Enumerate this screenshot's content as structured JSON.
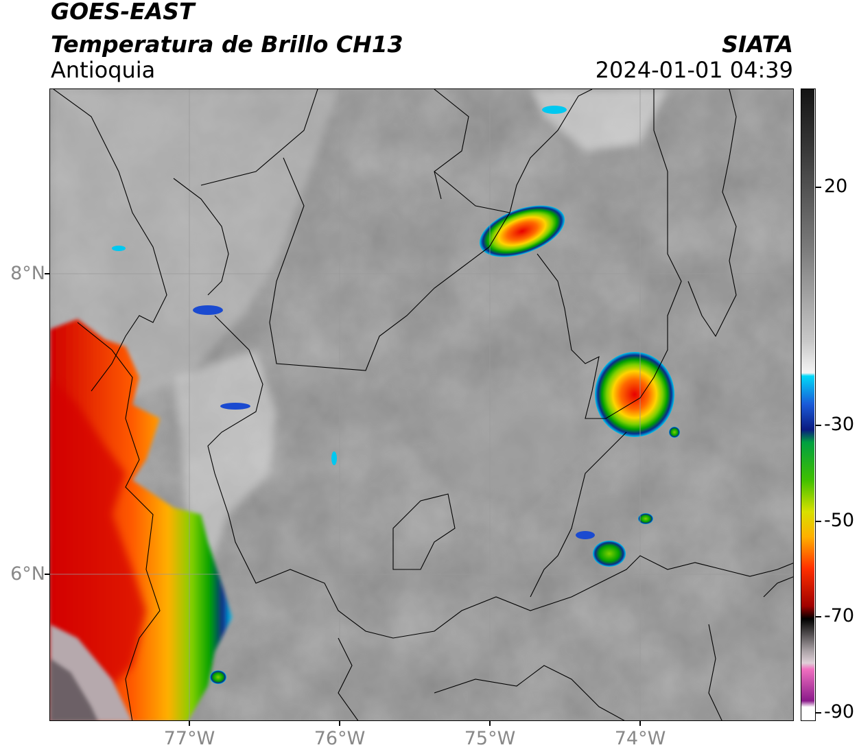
{
  "header": {
    "satellite": "GOES-EAST",
    "product": "Temperatura de Brillo CH13",
    "organization": "SIATA",
    "region": "Antioquia",
    "timestamp": "2024-01-01 04:39"
  },
  "map": {
    "lat_ticks": [
      {
        "label": "8°N",
        "value": 8
      },
      {
        "label": "6°N",
        "value": 6
      }
    ],
    "lon_ticks": [
      {
        "label": "77°W",
        "value": -77
      },
      {
        "label": "76°W",
        "value": -76
      },
      {
        "label": "75°W",
        "value": -75
      },
      {
        "label": "74°W",
        "value": -74
      }
    ],
    "background_color": "#8a8a8a",
    "gridline_color": "#9a9a9a",
    "border_color": "#000000"
  },
  "colorbar": {
    "ticks": [
      "20",
      "-30",
      "-50",
      "-70",
      "-90"
    ],
    "colors": {
      "warm_gray": "#2b2b2b",
      "light_gray": "#f2f2f2",
      "cyan": "#00d0f0",
      "dark_blue": "#0a2a8a",
      "green": "#00b000",
      "yellow": "#ffd400",
      "red": "#e00000",
      "black": "#000000",
      "pink": "#e060c0",
      "purple": "#8a1a8a"
    }
  }
}
